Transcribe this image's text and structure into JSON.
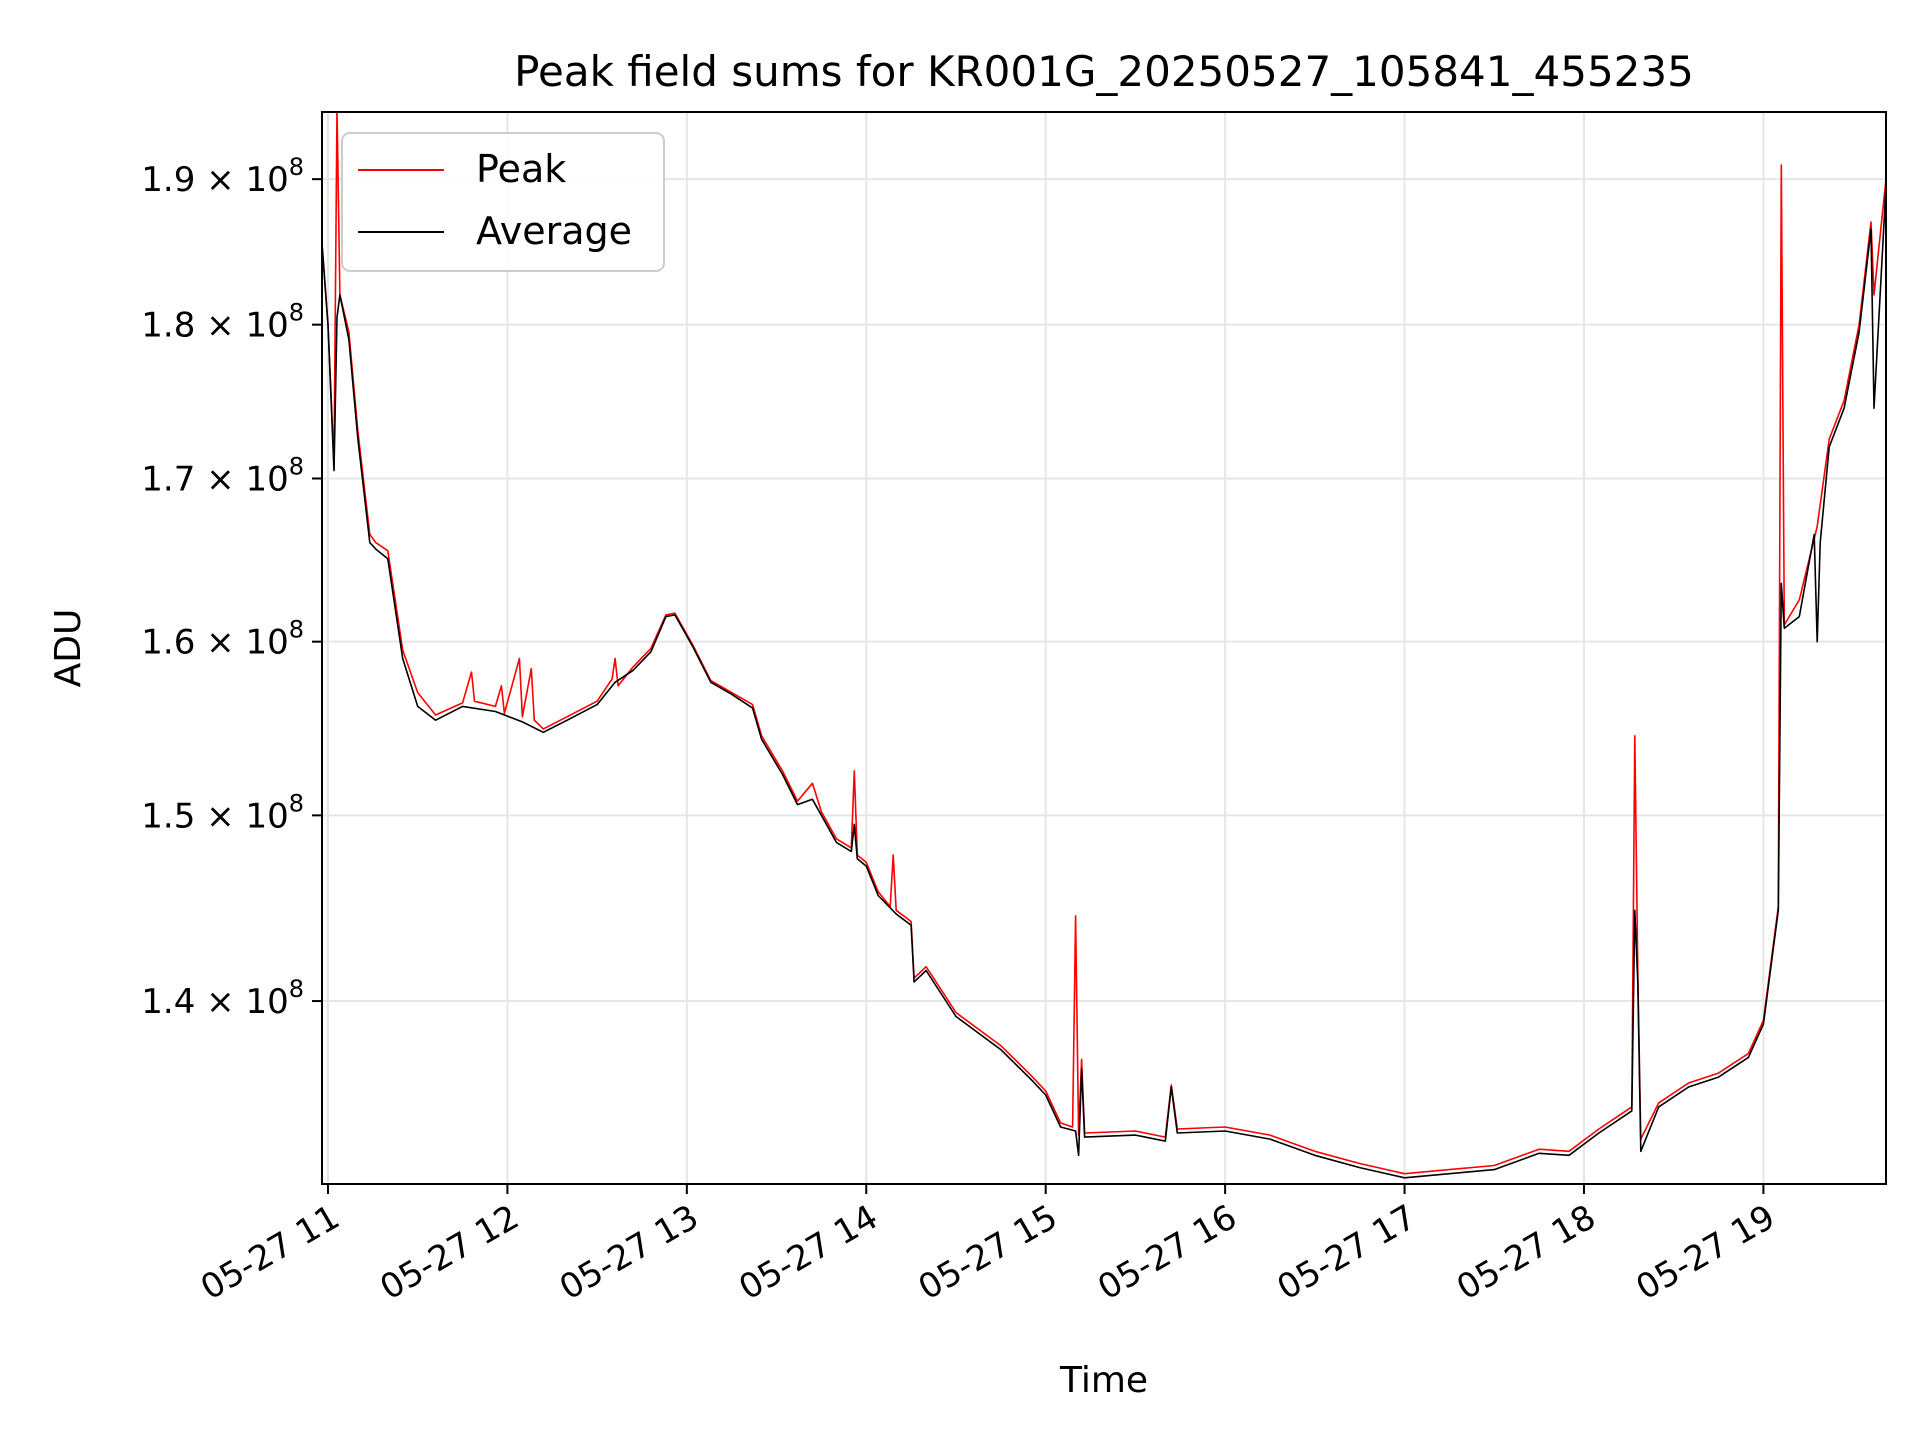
{
  "chart_data": {
    "type": "line",
    "title": "Peak field sums for KR001G_20250527_105841_455235",
    "xlabel": "Time",
    "ylabel": "ADU",
    "y_scale": "log",
    "xlim": [
      "2025-05-27 10:58",
      "2025-05-27 19:41"
    ],
    "ylim": [
      130800000,
      194800000
    ],
    "x_ticks": [
      {
        "t": "2025-05-27 11:00",
        "label": "05-27 11"
      },
      {
        "t": "2025-05-27 12:00",
        "label": "05-27 12"
      },
      {
        "t": "2025-05-27 13:00",
        "label": "05-27 13"
      },
      {
        "t": "2025-05-27 14:00",
        "label": "05-27 14"
      },
      {
        "t": "2025-05-27 15:00",
        "label": "05-27 15"
      },
      {
        "t": "2025-05-27 16:00",
        "label": "05-27 16"
      },
      {
        "t": "2025-05-27 17:00",
        "label": "05-27 17"
      },
      {
        "t": "2025-05-27 18:00",
        "label": "05-27 18"
      },
      {
        "t": "2025-05-27 19:00",
        "label": "05-27 19"
      }
    ],
    "y_ticks": [
      {
        "value": 140000000,
        "mantissa": "1.4 × 10",
        "exp": "8"
      },
      {
        "value": 150000000,
        "mantissa": "1.5 × 10",
        "exp": "8"
      },
      {
        "value": 160000000,
        "mantissa": "1.6 × 10",
        "exp": "8"
      },
      {
        "value": 170000000,
        "mantissa": "1.7 × 10",
        "exp": "8"
      },
      {
        "value": 180000000,
        "mantissa": "1.8 × 10",
        "exp": "8"
      },
      {
        "value": 190000000,
        "mantissa": "1.9 × 10",
        "exp": "8"
      }
    ],
    "grid": true,
    "legend": {
      "position": "upper-left"
    },
    "series": [
      {
        "name": "Peak",
        "color": "#ff0000",
        "points": [
          [
            "2025-05-27 10:58",
            185500000
          ],
          [
            "2025-05-27 11:00",
            180000000
          ],
          [
            "2025-05-27 11:02",
            171000000
          ],
          [
            "2025-05-27 11:03",
            195000000
          ],
          [
            "2025-05-27 11:04",
            182000000
          ],
          [
            "2025-05-27 11:07",
            179500000
          ],
          [
            "2025-05-27 11:10",
            173000000
          ],
          [
            "2025-05-27 11:14",
            166500000
          ],
          [
            "2025-05-27 11:16",
            166000000
          ],
          [
            "2025-05-27 11:20",
            165500000
          ],
          [
            "2025-05-27 11:25",
            159500000
          ],
          [
            "2025-05-27 11:30",
            157000000
          ],
          [
            "2025-05-27 11:36",
            155700000
          ],
          [
            "2025-05-27 11:45",
            156400000
          ],
          [
            "2025-05-27 11:48",
            158200000
          ],
          [
            "2025-05-27 11:49",
            156500000
          ],
          [
            "2025-05-27 11:56",
            156200000
          ],
          [
            "2025-05-27 11:58",
            157400000
          ],
          [
            "2025-05-27 11:59",
            155800000
          ],
          [
            "2025-05-27 12:04",
            159000000
          ],
          [
            "2025-05-27 12:05",
            155600000
          ],
          [
            "2025-05-27 12:08",
            158400000
          ],
          [
            "2025-05-27 12:09",
            155400000
          ],
          [
            "2025-05-27 12:12",
            154900000
          ],
          [
            "2025-05-27 12:20",
            155600000
          ],
          [
            "2025-05-27 12:30",
            156500000
          ],
          [
            "2025-05-27 12:35",
            157800000
          ],
          [
            "2025-05-27 12:36",
            159000000
          ],
          [
            "2025-05-27 12:37",
            157400000
          ],
          [
            "2025-05-27 12:42",
            158500000
          ],
          [
            "2025-05-27 12:48",
            159600000
          ],
          [
            "2025-05-27 12:53",
            161600000
          ],
          [
            "2025-05-27 12:56",
            161700000
          ],
          [
            "2025-05-27 13:02",
            159800000
          ],
          [
            "2025-05-27 13:08",
            157700000
          ],
          [
            "2025-05-27 13:15",
            157000000
          ],
          [
            "2025-05-27 13:22",
            156300000
          ],
          [
            "2025-05-27 13:25",
            154500000
          ],
          [
            "2025-05-27 13:32",
            152500000
          ],
          [
            "2025-05-27 13:37",
            150800000
          ],
          [
            "2025-05-27 13:42",
            151800000
          ],
          [
            "2025-05-27 13:45",
            150200000
          ],
          [
            "2025-05-27 13:50",
            148700000
          ],
          [
            "2025-05-27 13:55",
            148200000
          ],
          [
            "2025-05-27 13:56",
            152500000
          ],
          [
            "2025-05-27 13:57",
            147800000
          ],
          [
            "2025-05-27 14:00",
            147400000
          ],
          [
            "2025-05-27 14:04",
            145800000
          ],
          [
            "2025-05-27 14:08",
            145000000
          ],
          [
            "2025-05-27 14:09",
            147800000
          ],
          [
            "2025-05-27 14:10",
            144800000
          ],
          [
            "2025-05-27 14:15",
            144200000
          ],
          [
            "2025-05-27 14:16",
            141200000
          ],
          [
            "2025-05-27 14:20",
            141800000
          ],
          [
            "2025-05-27 14:30",
            139400000
          ],
          [
            "2025-05-27 14:45",
            137700000
          ],
          [
            "2025-05-27 14:55",
            136200000
          ],
          [
            "2025-05-27 15:00",
            135400000
          ],
          [
            "2025-05-27 15:05",
            133800000
          ],
          [
            "2025-05-27 15:09",
            133600000
          ],
          [
            "2025-05-27 15:10",
            144500000
          ],
          [
            "2025-05-27 15:11",
            133200000
          ],
          [
            "2025-05-27 15:12",
            137000000
          ],
          [
            "2025-05-27 15:13",
            133300000
          ],
          [
            "2025-05-27 15:30",
            133400000
          ],
          [
            "2025-05-27 15:40",
            133100000
          ],
          [
            "2025-05-27 15:42",
            135700000
          ],
          [
            "2025-05-27 15:44",
            133500000
          ],
          [
            "2025-05-27 16:00",
            133600000
          ],
          [
            "2025-05-27 16:15",
            133200000
          ],
          [
            "2025-05-27 16:30",
            132400000
          ],
          [
            "2025-05-27 16:45",
            131800000
          ],
          [
            "2025-05-27 17:00",
            131300000
          ],
          [
            "2025-05-27 17:15",
            131500000
          ],
          [
            "2025-05-27 17:30",
            131700000
          ],
          [
            "2025-05-27 17:45",
            132500000
          ],
          [
            "2025-05-27 17:55",
            132400000
          ],
          [
            "2025-05-27 18:05",
            133500000
          ],
          [
            "2025-05-27 18:16",
            134600000
          ],
          [
            "2025-05-27 18:17",
            154500000
          ],
          [
            "2025-05-27 18:18",
            141500000
          ],
          [
            "2025-05-27 18:19",
            133000000
          ],
          [
            "2025-05-27 18:25",
            134800000
          ],
          [
            "2025-05-27 18:35",
            135800000
          ],
          [
            "2025-05-27 18:45",
            136300000
          ],
          [
            "2025-05-27 18:55",
            137300000
          ],
          [
            "2025-05-27 19:00",
            139000000
          ],
          [
            "2025-05-27 19:05",
            145000000
          ],
          [
            "2025-05-27 19:06",
            191000000
          ],
          [
            "2025-05-27 19:07",
            161000000
          ],
          [
            "2025-05-27 19:12",
            162500000
          ],
          [
            "2025-05-27 19:18",
            167000000
          ],
          [
            "2025-05-27 19:22",
            172500000
          ],
          [
            "2025-05-27 19:27",
            175000000
          ],
          [
            "2025-05-27 19:32",
            180000000
          ],
          [
            "2025-05-27 19:36",
            187000000
          ],
          [
            "2025-05-27 19:37",
            182000000
          ],
          [
            "2025-05-27 19:41",
            190000000
          ]
        ]
      },
      {
        "name": "Average",
        "color": "#000000",
        "points": [
          [
            "2025-05-27 10:58",
            185500000
          ],
          [
            "2025-05-27 11:00",
            180000000
          ],
          [
            "2025-05-27 11:02",
            170500000
          ],
          [
            "2025-05-27 11:03",
            180500000
          ],
          [
            "2025-05-27 11:04",
            182000000
          ],
          [
            "2025-05-27 11:07",
            179000000
          ],
          [
            "2025-05-27 11:10",
            172500000
          ],
          [
            "2025-05-27 11:14",
            166000000
          ],
          [
            "2025-05-27 11:16",
            165600000
          ],
          [
            "2025-05-27 11:20",
            165000000
          ],
          [
            "2025-05-27 11:25",
            159000000
          ],
          [
            "2025-05-27 11:30",
            156200000
          ],
          [
            "2025-05-27 11:36",
            155400000
          ],
          [
            "2025-05-27 11:45",
            156200000
          ],
          [
            "2025-05-27 11:56",
            155900000
          ],
          [
            "2025-05-27 12:05",
            155300000
          ],
          [
            "2025-05-27 12:12",
            154700000
          ],
          [
            "2025-05-27 12:20",
            155400000
          ],
          [
            "2025-05-27 12:30",
            156300000
          ],
          [
            "2025-05-27 12:36",
            157600000
          ],
          [
            "2025-05-27 12:42",
            158300000
          ],
          [
            "2025-05-27 12:48",
            159400000
          ],
          [
            "2025-05-27 12:53",
            161500000
          ],
          [
            "2025-05-27 12:56",
            161600000
          ],
          [
            "2025-05-27 13:02",
            159700000
          ],
          [
            "2025-05-27 13:08",
            157600000
          ],
          [
            "2025-05-27 13:15",
            156900000
          ],
          [
            "2025-05-27 13:22",
            156100000
          ],
          [
            "2025-05-27 13:25",
            154300000
          ],
          [
            "2025-05-27 13:32",
            152300000
          ],
          [
            "2025-05-27 13:37",
            150600000
          ],
          [
            "2025-05-27 13:42",
            150900000
          ],
          [
            "2025-05-27 13:45",
            150000000
          ],
          [
            "2025-05-27 13:50",
            148500000
          ],
          [
            "2025-05-27 13:55",
            148000000
          ],
          [
            "2025-05-27 13:56",
            149500000
          ],
          [
            "2025-05-27 13:57",
            147600000
          ],
          [
            "2025-05-27 14:00",
            147200000
          ],
          [
            "2025-05-27 14:04",
            145600000
          ],
          [
            "2025-05-27 14:10",
            144600000
          ],
          [
            "2025-05-27 14:15",
            144000000
          ],
          [
            "2025-05-27 14:16",
            141000000
          ],
          [
            "2025-05-27 14:20",
            141600000
          ],
          [
            "2025-05-27 14:30",
            139200000
          ],
          [
            "2025-05-27 14:45",
            137500000
          ],
          [
            "2025-05-27 14:55",
            136000000
          ],
          [
            "2025-05-27 15:00",
            135200000
          ],
          [
            "2025-05-27 15:05",
            133600000
          ],
          [
            "2025-05-27 15:10",
            133400000
          ],
          [
            "2025-05-27 15:11",
            132200000
          ],
          [
            "2025-05-27 15:12",
            136500000
          ],
          [
            "2025-05-27 15:13",
            133100000
          ],
          [
            "2025-05-27 15:30",
            133200000
          ],
          [
            "2025-05-27 15:40",
            132900000
          ],
          [
            "2025-05-27 15:42",
            135600000
          ],
          [
            "2025-05-27 15:44",
            133300000
          ],
          [
            "2025-05-27 16:00",
            133400000
          ],
          [
            "2025-05-27 16:15",
            133000000
          ],
          [
            "2025-05-27 16:30",
            132200000
          ],
          [
            "2025-05-27 16:45",
            131600000
          ],
          [
            "2025-05-27 17:00",
            131100000
          ],
          [
            "2025-05-27 17:15",
            131300000
          ],
          [
            "2025-05-27 17:30",
            131500000
          ],
          [
            "2025-05-27 17:45",
            132300000
          ],
          [
            "2025-05-27 17:55",
            132200000
          ],
          [
            "2025-05-27 18:05",
            133300000
          ],
          [
            "2025-05-27 18:16",
            134400000
          ],
          [
            "2025-05-27 18:17",
            144800000
          ],
          [
            "2025-05-27 18:18",
            141000000
          ],
          [
            "2025-05-27 18:19",
            132400000
          ],
          [
            "2025-05-27 18:25",
            134600000
          ],
          [
            "2025-05-27 18:35",
            135600000
          ],
          [
            "2025-05-27 18:45",
            136100000
          ],
          [
            "2025-05-27 18:55",
            137100000
          ],
          [
            "2025-05-27 19:00",
            138800000
          ],
          [
            "2025-05-27 19:05",
            144800000
          ],
          [
            "2025-05-27 19:06",
            163500000
          ],
          [
            "2025-05-27 19:07",
            160800000
          ],
          [
            "2025-05-27 19:12",
            161500000
          ],
          [
            "2025-05-27 19:17",
            166500000
          ],
          [
            "2025-05-27 19:18",
            160000000
          ],
          [
            "2025-05-27 19:19",
            166000000
          ],
          [
            "2025-05-27 19:22",
            172000000
          ],
          [
            "2025-05-27 19:27",
            174500000
          ],
          [
            "2025-05-27 19:32",
            179500000
          ],
          [
            "2025-05-27 19:36",
            186500000
          ],
          [
            "2025-05-27 19:37",
            174500000
          ],
          [
            "2025-05-27 19:41",
            189500000
          ]
        ]
      }
    ]
  }
}
